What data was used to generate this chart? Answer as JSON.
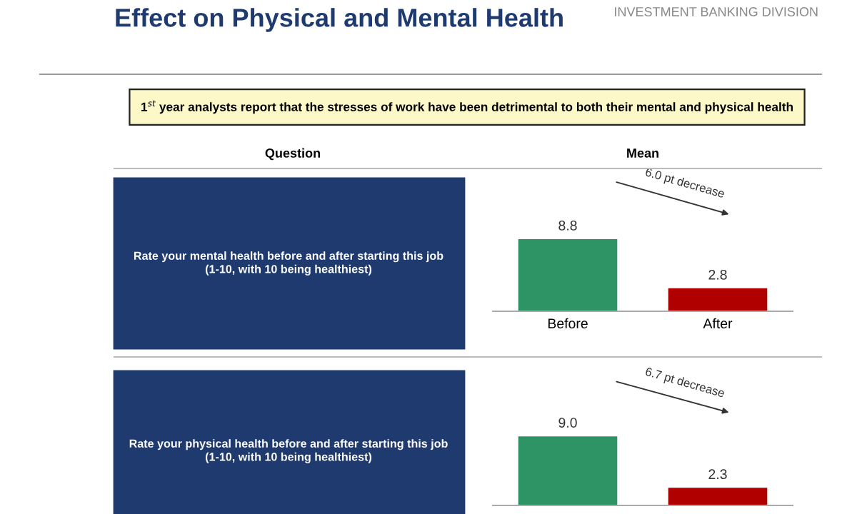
{
  "chart_data": [
    {
      "type": "bar",
      "title": "Effect on Physical and Mental Health",
      "categories": [
        "Before",
        "After"
      ],
      "values": [
        8.8,
        2.8
      ],
      "value_labels": [
        "8.8",
        "2.8"
      ],
      "colors": [
        "#2e9466",
        "#b00000"
      ],
      "annotations": [
        "INVESTMENT BANKING DIVISION",
        "1$^{st}$ year analysts report that the stresses of work have been detrimental to both their mental and physical health",
        "Question",
        "Mean",
        "Rate your mental health before and after starting this job\n(1-10, with 10 being healthiest)",
        "6.0 pt decrease"
      ]
    },
    {
      "type": "bar",
      "categories": [
        null,
        null
      ],
      "values": [
        9.0,
        2.3
      ],
      "value_labels": [
        "9.0",
        "2.3"
      ],
      "colors": [
        "#2e9466",
        "#b00000"
      ],
      "annotations": [
        "Rate your physical health before and after starting this job\n(1-10, with 10 being healthiest)",
        "6.7 pt decrease"
      ]
    }
  ]
}
